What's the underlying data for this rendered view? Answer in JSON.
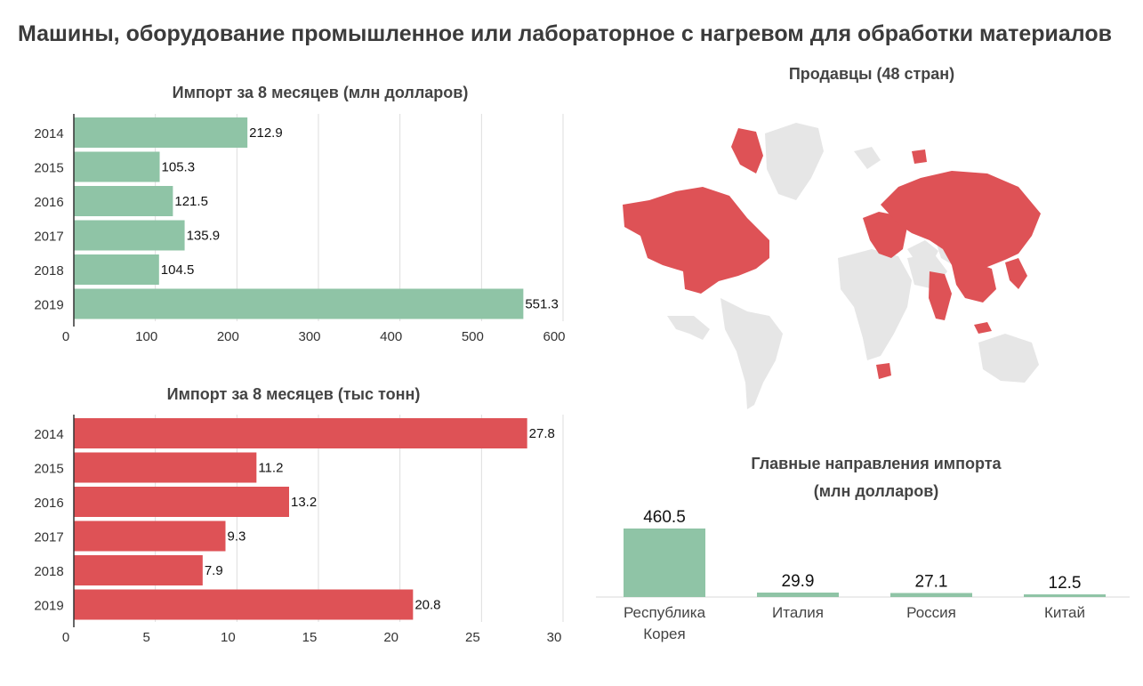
{
  "title": "Машины, оборудование промышленное или лабораторное с  нагревом для обработки материалов",
  "colors": {
    "green": "#8fc4a6",
    "red": "#de5256",
    "land": "#e6e6e6",
    "grid": "#dddddd"
  },
  "chart_data": [
    {
      "type": "bar",
      "orientation": "horizontal",
      "title": "Импорт за 8 месяцев (млн долларов)",
      "categories": [
        "2014",
        "2015",
        "2016",
        "2017",
        "2018",
        "2019"
      ],
      "values": [
        212.9,
        105.3,
        121.5,
        135.9,
        104.5,
        551.3
      ],
      "value_labels": [
        "212.9",
        "105.3",
        "121.5",
        "135.9",
        "104.5",
        "551.3"
      ],
      "xlim": [
        0,
        600
      ],
      "ticks": [
        "0",
        "100",
        "200",
        "300",
        "400",
        "500",
        "600"
      ],
      "tick_values": [
        0,
        100,
        200,
        300,
        400,
        500,
        600
      ],
      "color": "#8fc4a6",
      "grid": true
    },
    {
      "type": "bar",
      "orientation": "horizontal",
      "title": "Импорт за 8 месяцев (тыс тонн)",
      "categories": [
        "2014",
        "2015",
        "2016",
        "2017",
        "2018",
        "2019"
      ],
      "values": [
        27.8,
        11.2,
        13.2,
        9.3,
        7.9,
        20.8
      ],
      "value_labels": [
        "27.8",
        "11.2",
        "13.2",
        "9.3",
        "7.9",
        "20.8"
      ],
      "xlim": [
        0,
        30
      ],
      "ticks": [
        "0",
        "5",
        "10",
        "15",
        "20",
        "25",
        "30"
      ],
      "tick_values": [
        0,
        5,
        10,
        15,
        20,
        25,
        30
      ],
      "color": "#de5256",
      "grid": true
    },
    {
      "type": "bar",
      "orientation": "vertical",
      "title": "Главные направления импорта",
      "subtitle": "(млн долларов)",
      "categories": [
        [
          "Республика",
          "Корея"
        ],
        [
          "Италия"
        ],
        [
          "Россия"
        ],
        [
          "Китай"
        ]
      ],
      "values": [
        460.5,
        29.9,
        27.1,
        12.5
      ],
      "value_labels": [
        "460.5",
        "29.9",
        "27.1",
        "12.5"
      ],
      "color": "#8fc4a6",
      "grid": false
    }
  ],
  "map": {
    "title": "Продавцы (48 стран)"
  }
}
